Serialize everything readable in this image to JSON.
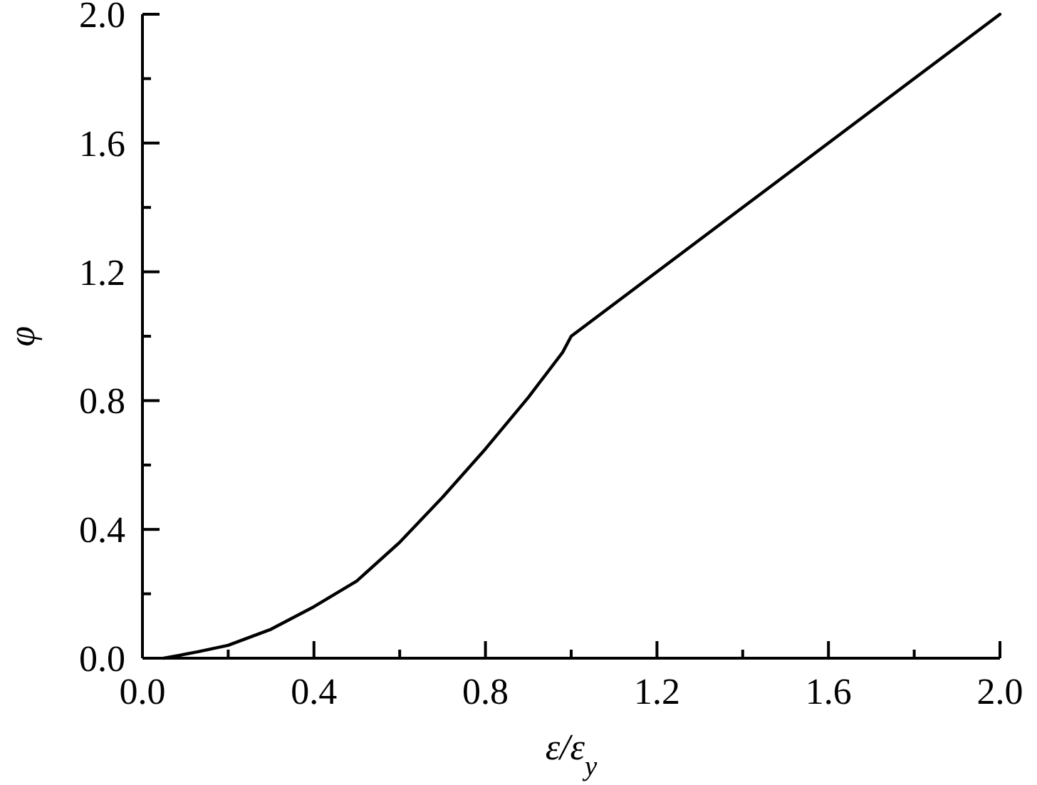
{
  "chart_data": {
    "type": "line",
    "xlabel": "ε/ε$_{y}$",
    "ylabel": "φ",
    "xlim": [
      0,
      2
    ],
    "ylim": [
      0,
      2
    ],
    "xticks": [
      {
        "value": 0,
        "label": "0.0"
      },
      {
        "value": 0.2,
        "label": null
      },
      {
        "value": 0.4,
        "label": "0.4"
      },
      {
        "value": 0.6,
        "label": null
      },
      {
        "value": 0.8,
        "label": "0.8"
      },
      {
        "value": 1,
        "label": null
      },
      {
        "value": 1.2,
        "label": "1.2"
      },
      {
        "value": 1.4,
        "label": null
      },
      {
        "value": 1.6,
        "label": "1.6"
      },
      {
        "value": 1.8,
        "label": null
      },
      {
        "value": 2,
        "label": "2.0"
      }
    ],
    "yticks": [
      {
        "value": 0,
        "label": "0.0"
      },
      {
        "value": 0.2,
        "label": null
      },
      {
        "value": 0.4,
        "label": "0.4"
      },
      {
        "value": 0.6,
        "label": null
      },
      {
        "value": 0.8,
        "label": "0.8"
      },
      {
        "value": 1,
        "label": null
      },
      {
        "value": 1.2,
        "label": "1.2"
      },
      {
        "value": 1.4,
        "label": null
      },
      {
        "value": 1.6,
        "label": "1.6"
      },
      {
        "value": 1.8,
        "label": null
      },
      {
        "value": 2,
        "label": "2.0"
      }
    ],
    "x": [
      0.05,
      0.13,
      0.2,
      0.3,
      0.4,
      0.5,
      0.6,
      0.7,
      0.8,
      0.9,
      0.98,
      1.0,
      2.0
    ],
    "series": [
      {
        "color": "#000000",
        "values": [
          0,
          0.02,
          0.04,
          0.09,
          0.16,
          0.24,
          0.36,
          0.5,
          0.65,
          0.81,
          0.95,
          1.0,
          2.0
        ]
      }
    ],
    "grid": false,
    "marker": "none",
    "line_style": "solid"
  }
}
